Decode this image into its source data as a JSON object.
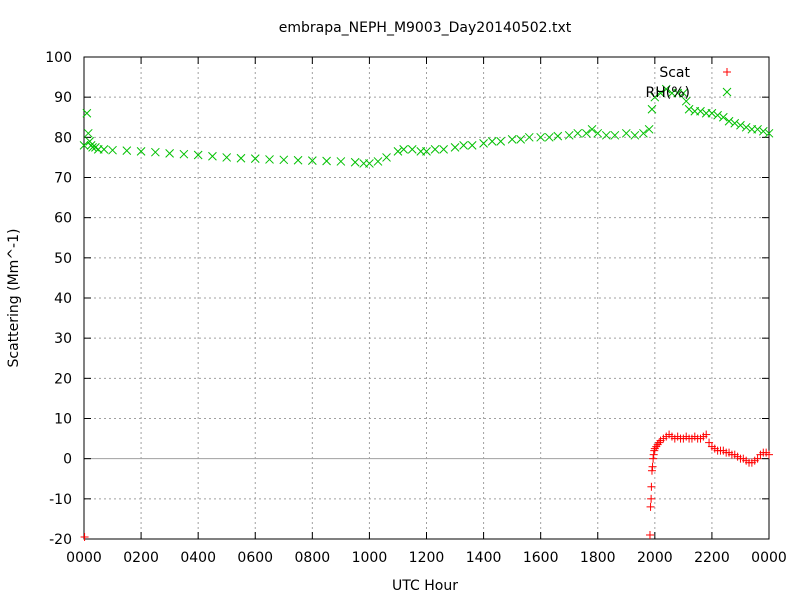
{
  "chart_data": {
    "type": "scatter",
    "title": "embrapa_NEPH_M9003_Day20140502.txt",
    "xlabel": "UTC Hour",
    "ylabel": "Scattering (Mm^-1)",
    "xlim": [
      0,
      24
    ],
    "ylim": [
      -20,
      100
    ],
    "x_ticks": [
      {
        "value": 0,
        "label": "0000"
      },
      {
        "value": 2,
        "label": "0200"
      },
      {
        "value": 4,
        "label": "0400"
      },
      {
        "value": 6,
        "label": "0600"
      },
      {
        "value": 8,
        "label": "0800"
      },
      {
        "value": 10,
        "label": "1000"
      },
      {
        "value": 12,
        "label": "1200"
      },
      {
        "value": 14,
        "label": "1400"
      },
      {
        "value": 16,
        "label": "1600"
      },
      {
        "value": 18,
        "label": "1800"
      },
      {
        "value": 20,
        "label": "2000"
      },
      {
        "value": 22,
        "label": "2200"
      },
      {
        "value": 24,
        "label": "0000"
      }
    ],
    "y_ticks": [
      {
        "value": -20,
        "label": "-20"
      },
      {
        "value": -10,
        "label": "-10"
      },
      {
        "value": 0,
        "label": "0"
      },
      {
        "value": 10,
        "label": "10"
      },
      {
        "value": 20,
        "label": "20"
      },
      {
        "value": 30,
        "label": "30"
      },
      {
        "value": 40,
        "label": "40"
      },
      {
        "value": 50,
        "label": "50"
      },
      {
        "value": 60,
        "label": "60"
      },
      {
        "value": 70,
        "label": "70"
      },
      {
        "value": 80,
        "label": "80"
      },
      {
        "value": 90,
        "label": "90"
      },
      {
        "value": 100,
        "label": "100"
      }
    ],
    "grid": true,
    "legend_position": "top-right",
    "series": [
      {
        "name": "Scat",
        "marker": "plus",
        "color": "#ff0000",
        "x": [
          0.02,
          19.83,
          19.85,
          19.87,
          19.88,
          19.9,
          19.92,
          19.94,
          19.96,
          19.98,
          20.0,
          20.05,
          20.1,
          20.15,
          20.2,
          20.3,
          20.4,
          20.5,
          20.6,
          20.7,
          20.8,
          20.9,
          21.0,
          21.1,
          21.2,
          21.3,
          21.4,
          21.5,
          21.6,
          21.7,
          21.8,
          21.9,
          22.0,
          22.1,
          22.2,
          22.3,
          22.4,
          22.5,
          22.6,
          22.7,
          22.8,
          22.9,
          23.0,
          23.1,
          23.2,
          23.3,
          23.4,
          23.5,
          23.6,
          23.7,
          23.8,
          23.9,
          24.0
        ],
        "y": [
          -19.5,
          -19,
          -12,
          -10,
          -7,
          -3,
          -2,
          0,
          1,
          2,
          2.5,
          3,
          3.5,
          4,
          4.5,
          5,
          5.5,
          6,
          5.5,
          5,
          5.5,
          5,
          5,
          5.5,
          5,
          5,
          5.5,
          5,
          5,
          5.5,
          6,
          4,
          3,
          2.5,
          2,
          2,
          2,
          1.5,
          1.5,
          1,
          1,
          0.5,
          0,
          0,
          -0.5,
          -1,
          -1,
          -0.5,
          0,
          1,
          1.5,
          1.5,
          1
        ]
      },
      {
        "name": "RH(%)",
        "marker": "cross",
        "color": "#00c000",
        "x": [
          0.0,
          0.1,
          0.15,
          0.2,
          0.25,
          0.3,
          0.4,
          0.5,
          0.7,
          1.0,
          1.5,
          2.0,
          2.5,
          3.0,
          3.5,
          4.0,
          4.5,
          5.0,
          5.5,
          6.0,
          6.5,
          7.0,
          7.5,
          8.0,
          8.5,
          9.0,
          9.5,
          9.8,
          10.0,
          10.3,
          10.6,
          11.0,
          11.2,
          11.5,
          11.8,
          12.0,
          12.3,
          12.6,
          13.0,
          13.3,
          13.6,
          14.0,
          14.3,
          14.6,
          15.0,
          15.3,
          15.6,
          16.0,
          16.3,
          16.6,
          17.0,
          17.3,
          17.6,
          17.8,
          18.0,
          18.3,
          18.6,
          19.0,
          19.3,
          19.6,
          19.8,
          19.9,
          20.0,
          20.2,
          20.4,
          20.6,
          20.8,
          21.0,
          21.1,
          21.2,
          21.4,
          21.6,
          21.8,
          22.0,
          22.2,
          22.4,
          22.6,
          22.8,
          23.0,
          23.2,
          23.4,
          23.6,
          23.8,
          24.0
        ],
        "y": [
          78,
          86,
          81,
          79,
          78,
          77.5,
          77.5,
          77,
          77,
          76.8,
          76.7,
          76.5,
          76.3,
          76,
          75.8,
          75.6,
          75.3,
          75,
          74.8,
          74.7,
          74.5,
          74.4,
          74.3,
          74.2,
          74.1,
          74,
          73.8,
          73.5,
          73.5,
          74,
          75,
          76.5,
          77,
          77,
          76.5,
          76.5,
          77,
          77,
          77.5,
          78,
          78,
          78.5,
          79,
          79,
          79.5,
          79.5,
          80,
          80,
          80,
          80.3,
          80.5,
          81,
          81,
          82,
          81,
          80.5,
          80.5,
          81,
          80.5,
          81,
          82,
          87,
          90,
          91,
          92,
          91,
          91,
          91,
          89,
          87,
          86.5,
          86.5,
          86,
          86,
          85.5,
          85,
          84,
          83.5,
          83,
          82.5,
          82,
          82,
          81.5,
          81
        ]
      }
    ]
  }
}
